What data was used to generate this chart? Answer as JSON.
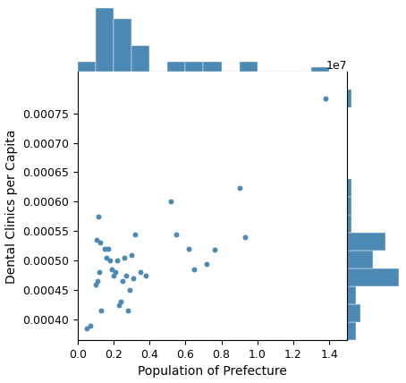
{
  "scatter_x": [
    500000,
    700000,
    1000000,
    1050000,
    1100000,
    1150000,
    1200000,
    1250000,
    1300000,
    1500000,
    1600000,
    1700000,
    1800000,
    1900000,
    2000000,
    2100000,
    2200000,
    2300000,
    2400000,
    2500000,
    2600000,
    2700000,
    2800000,
    2900000,
    3000000,
    3100000,
    3200000,
    3500000,
    3800000,
    5200000,
    5500000,
    6200000,
    6500000,
    7200000,
    7600000,
    9000000,
    9300000,
    13800000
  ],
  "scatter_y": [
    0.000385,
    0.00039,
    0.00046,
    0.000535,
    0.000465,
    0.000575,
    0.00048,
    0.00053,
    0.000415,
    0.00052,
    0.000505,
    0.00052,
    0.0005,
    0.000485,
    0.000475,
    0.00048,
    0.0005,
    0.000425,
    0.00043,
    0.000465,
    0.000505,
    0.000475,
    0.000415,
    0.00045,
    0.00051,
    0.00047,
    0.000545,
    0.00048,
    0.000475,
    0.0006,
    0.000545,
    0.00052,
    0.000485,
    0.000495,
    0.000518,
    0.000623,
    0.00054,
    0.000775
  ],
  "point_color": "#4c8ab5",
  "hist_color": "#4c8ab5",
  "xlabel": "Population of Prefecture",
  "ylabel": "Dental Clinics per Capita",
  "xlim": [
    0,
    15000000.0
  ],
  "ylim": [
    0.000365,
    0.00082
  ],
  "x_ticks": [
    0.0,
    2000000,
    4000000,
    6000000,
    8000000,
    10000000,
    12000000,
    14000000
  ],
  "y_ticks": [
    0.0004,
    0.00045,
    0.0005,
    0.00055,
    0.0006,
    0.00065,
    0.0007,
    0.00075
  ]
}
